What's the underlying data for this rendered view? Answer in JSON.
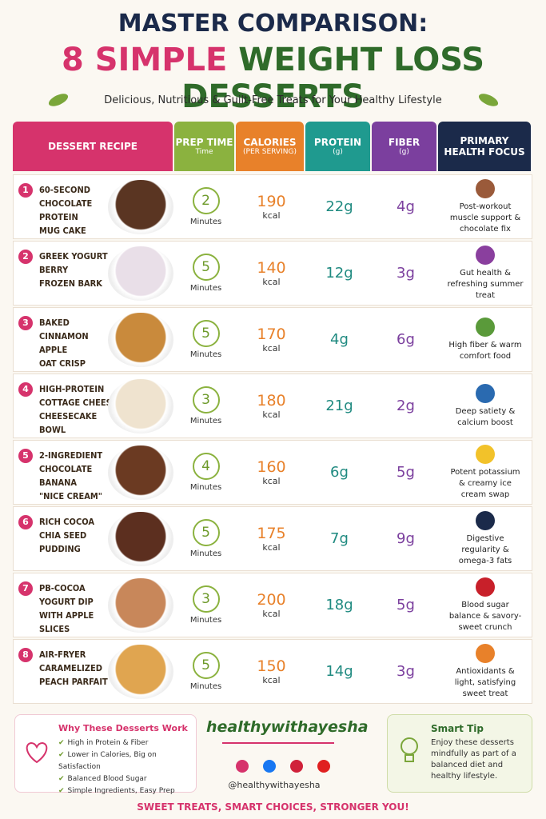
{
  "header": {
    "title_line1": "MASTER COMPARISON:",
    "title_line2_a": "8 SIMPLE",
    "title_line2_b": "WEIGHT LOSS DESSERTS",
    "subtitle": "Delicious, Nutritious & Guilt-Free Treats for Your Healthy Lifestyle"
  },
  "table": {
    "columns": [
      {
        "title": "DESSERT RECIPE"
      },
      {
        "title": "PREP TIME",
        "sub": "Time"
      },
      {
        "title": "CALORIES",
        "sub": "(PER SERVING)"
      },
      {
        "title": "PROTEIN",
        "sub": "(g)"
      },
      {
        "title": "FIBER",
        "sub": "(g)"
      },
      {
        "title": "PRIMARY\nHEALTH FOCUS"
      }
    ],
    "rows": [
      {
        "number": "1",
        "name": "60-SECOND\nCHOCOLATE\nPROTEIN\nMUG CAKE",
        "prep": "2",
        "prep_unit": "Minutes",
        "calories": "190",
        "cal_unit": "kcal",
        "protein": "22g",
        "fiber": "4g",
        "focus": "Post-workout muscle support & chocolate fix"
      },
      {
        "number": "2",
        "name": "GREEK YOGURT\nBERRY\nFROZEN BARK",
        "prep": "5",
        "prep_unit": "Minutes",
        "calories": "140",
        "cal_unit": "kcal",
        "protein": "12g",
        "fiber": "3g",
        "focus": "Gut health & refreshing summer treat"
      },
      {
        "number": "3",
        "name": "BAKED\nCINNAMON\nAPPLE\nOAT CRISP",
        "prep": "5",
        "prep_unit": "Minutes",
        "calories": "170",
        "cal_unit": "kcal",
        "protein": "4g",
        "fiber": "6g",
        "focus": "High fiber & warm comfort food"
      },
      {
        "number": "4",
        "name": "HIGH-PROTEIN\nCOTTAGE CHEESE\nCHEESECAKE\nBOWL",
        "prep": "3",
        "prep_unit": "Minutes",
        "calories": "180",
        "cal_unit": "kcal",
        "protein": "21g",
        "fiber": "2g",
        "focus": "Deep satiety & calcium boost"
      },
      {
        "number": "5",
        "name": "2-INGREDIENT\nCHOCOLATE\nBANANA\n\"NICE CREAM\"",
        "prep": "4",
        "prep_unit": "Minutes",
        "calories": "160",
        "cal_unit": "kcal",
        "protein": "6g",
        "fiber": "5g",
        "focus": "Potent potassium & creamy ice cream swap"
      },
      {
        "number": "6",
        "name": "RICH COCOA\nCHIA SEED\nPUDDING",
        "prep": "5",
        "prep_unit": "Minutes",
        "calories": "175",
        "cal_unit": "kcal",
        "protein": "7g",
        "fiber": "9g",
        "focus": "Digestive regularity & omega-3 fats"
      },
      {
        "number": "7",
        "name": "PB-COCOA\nYOGURT DIP\nWITH APPLE\nSLICES",
        "prep": "3",
        "prep_unit": "Minutes",
        "calories": "200",
        "cal_unit": "kcal",
        "protein": "18g",
        "fiber": "5g",
        "focus": "Blood sugar balance & savory-sweet crunch"
      },
      {
        "number": "8",
        "name": "AIR-FRYER\nCARAMELIZED\nPEACH PARFAIT",
        "prep": "5",
        "prep_unit": "Minutes",
        "calories": "150",
        "cal_unit": "kcal",
        "protein": "14g",
        "fiber": "3g",
        "focus": "Antioxidants & light, satisfying sweet treat"
      }
    ]
  },
  "footer": {
    "why_title": "Why These Desserts Work",
    "why_items": [
      "High in Protein & Fiber",
      "Lower in Calories, Big on Satisfaction",
      "Balanced Blood Sugar",
      "Simple Ingredients, Easy Prep"
    ],
    "brand": "healthywithayesha",
    "handle": "@healthywithayesha",
    "tip_title": "Smart Tip",
    "tip_text": "Enjoy these desserts mindfully as part of a balanced diet and healthy lifestyle.",
    "slogan": "SWEET TREATS, SMART CHOICES, STRONGER YOU!"
  }
}
